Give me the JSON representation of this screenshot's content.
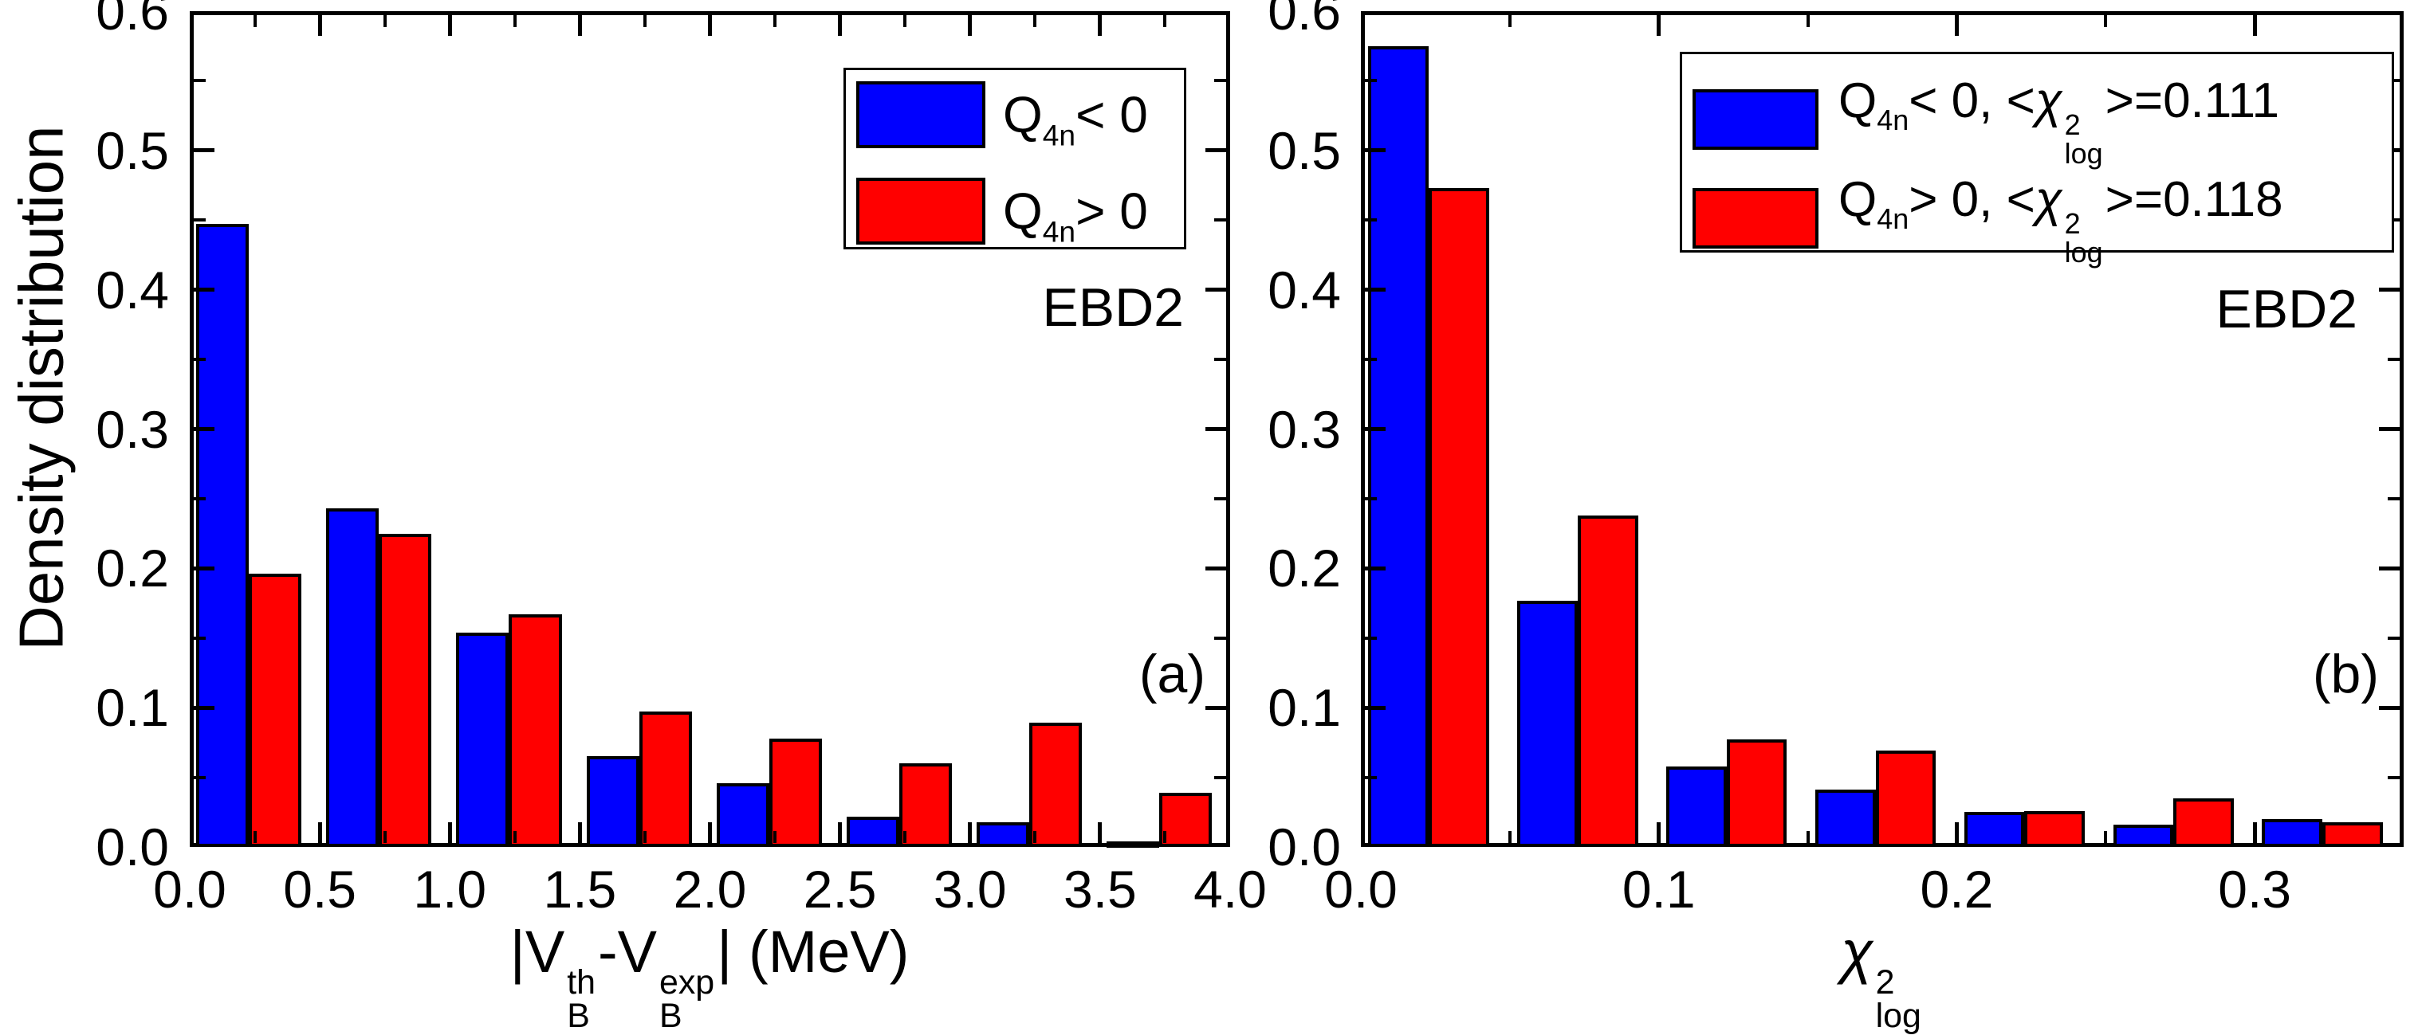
{
  "figure": {
    "background": "#ffffff",
    "frame_color": "#000000",
    "ylabel": "Density distribution"
  },
  "chart_data": [
    {
      "type": "bar",
      "panel": "a",
      "panel_label": "(a)",
      "annotation": "EBD2",
      "title": "",
      "xlabel": "|V_{B}^{th}-V_{B}^{exp}| (MeV)",
      "ylabel": "Density distribution",
      "xlim": [
        0,
        4.0
      ],
      "ylim": [
        0,
        0.6
      ],
      "grid": false,
      "legend_position": "upper right",
      "bin_width": 0.5,
      "bin_edges": [
        0.0,
        0.5,
        1.0,
        1.5,
        2.0,
        2.5,
        3.0,
        3.5,
        4.0
      ],
      "x_ticks": [
        {
          "v": 0.0,
          "label": "0.0"
        },
        {
          "v": 0.5,
          "label": "0.5"
        },
        {
          "v": 1.0,
          "label": "1.0"
        },
        {
          "v": 1.5,
          "label": "1.5"
        },
        {
          "v": 2.0,
          "label": "2.0"
        },
        {
          "v": 2.5,
          "label": "2.5"
        },
        {
          "v": 3.0,
          "label": "3.0"
        },
        {
          "v": 3.5,
          "label": "3.5"
        },
        {
          "v": 4.0,
          "label": "4.0"
        }
      ],
      "x_minor_step": 0.25,
      "y_ticks": [
        {
          "v": 0.0,
          "label": "0.0"
        },
        {
          "v": 0.1,
          "label": "0.1"
        },
        {
          "v": 0.2,
          "label": "0.2"
        },
        {
          "v": 0.3,
          "label": "0.3"
        },
        {
          "v": 0.4,
          "label": "0.4"
        },
        {
          "v": 0.5,
          "label": "0.5"
        },
        {
          "v": 0.6,
          "label": "0.6"
        }
      ],
      "y_minor_step": 0.05,
      "series": [
        {
          "name": "Q_{4n}< 0",
          "color": "#0000ff",
          "values": [
            0.447,
            0.243,
            0.154,
            0.065,
            0.046,
            0.022,
            0.018,
            0.004
          ]
        },
        {
          "name": "Q_{4n}> 0",
          "color": "#ff0000",
          "values": [
            0.196,
            0.225,
            0.167,
            0.097,
            0.078,
            0.06,
            0.089,
            0.039
          ]
        }
      ]
    },
    {
      "type": "bar",
      "panel": "b",
      "panel_label": "(b)",
      "annotation": "EBD2",
      "title": "",
      "xlabel": "χ_{log}^{2}",
      "ylabel": "",
      "xlim": [
        0,
        0.35
      ],
      "ylim": [
        0,
        0.6
      ],
      "grid": false,
      "legend_position": "upper right",
      "bin_width": 0.05,
      "bin_edges": [
        0.0,
        0.05,
        0.1,
        0.15,
        0.2,
        0.25,
        0.3,
        0.35
      ],
      "x_ticks": [
        {
          "v": 0.0,
          "label": "0.0"
        },
        {
          "v": 0.1,
          "label": "0.1"
        },
        {
          "v": 0.2,
          "label": "0.2"
        },
        {
          "v": 0.3,
          "label": "0.3"
        }
      ],
      "x_minor_step": 0.05,
      "y_ticks": [
        {
          "v": 0.0,
          "label": "0.0"
        },
        {
          "v": 0.1,
          "label": "0.1"
        },
        {
          "v": 0.2,
          "label": "0.2"
        },
        {
          "v": 0.3,
          "label": "0.3"
        },
        {
          "v": 0.4,
          "label": "0.4"
        },
        {
          "v": 0.5,
          "label": "0.5"
        },
        {
          "v": 0.6,
          "label": "0.6"
        }
      ],
      "y_minor_step": 0.05,
      "series": [
        {
          "name": "Q_{4n}< 0, <χ_{log}^{2}>=0.111",
          "mean_chi2_log": 0.111,
          "color": "#0000ff",
          "values": [
            0.575,
            0.177,
            0.058,
            0.041,
            0.025,
            0.016,
            0.02
          ]
        },
        {
          "name": "Q_{4n}> 0, <χ_{log}^{2}>=0.118",
          "mean_chi2_log": 0.118,
          "color": "#ff0000",
          "values": [
            0.473,
            0.238,
            0.077,
            0.069,
            0.026,
            0.035,
            0.018
          ]
        }
      ]
    }
  ]
}
